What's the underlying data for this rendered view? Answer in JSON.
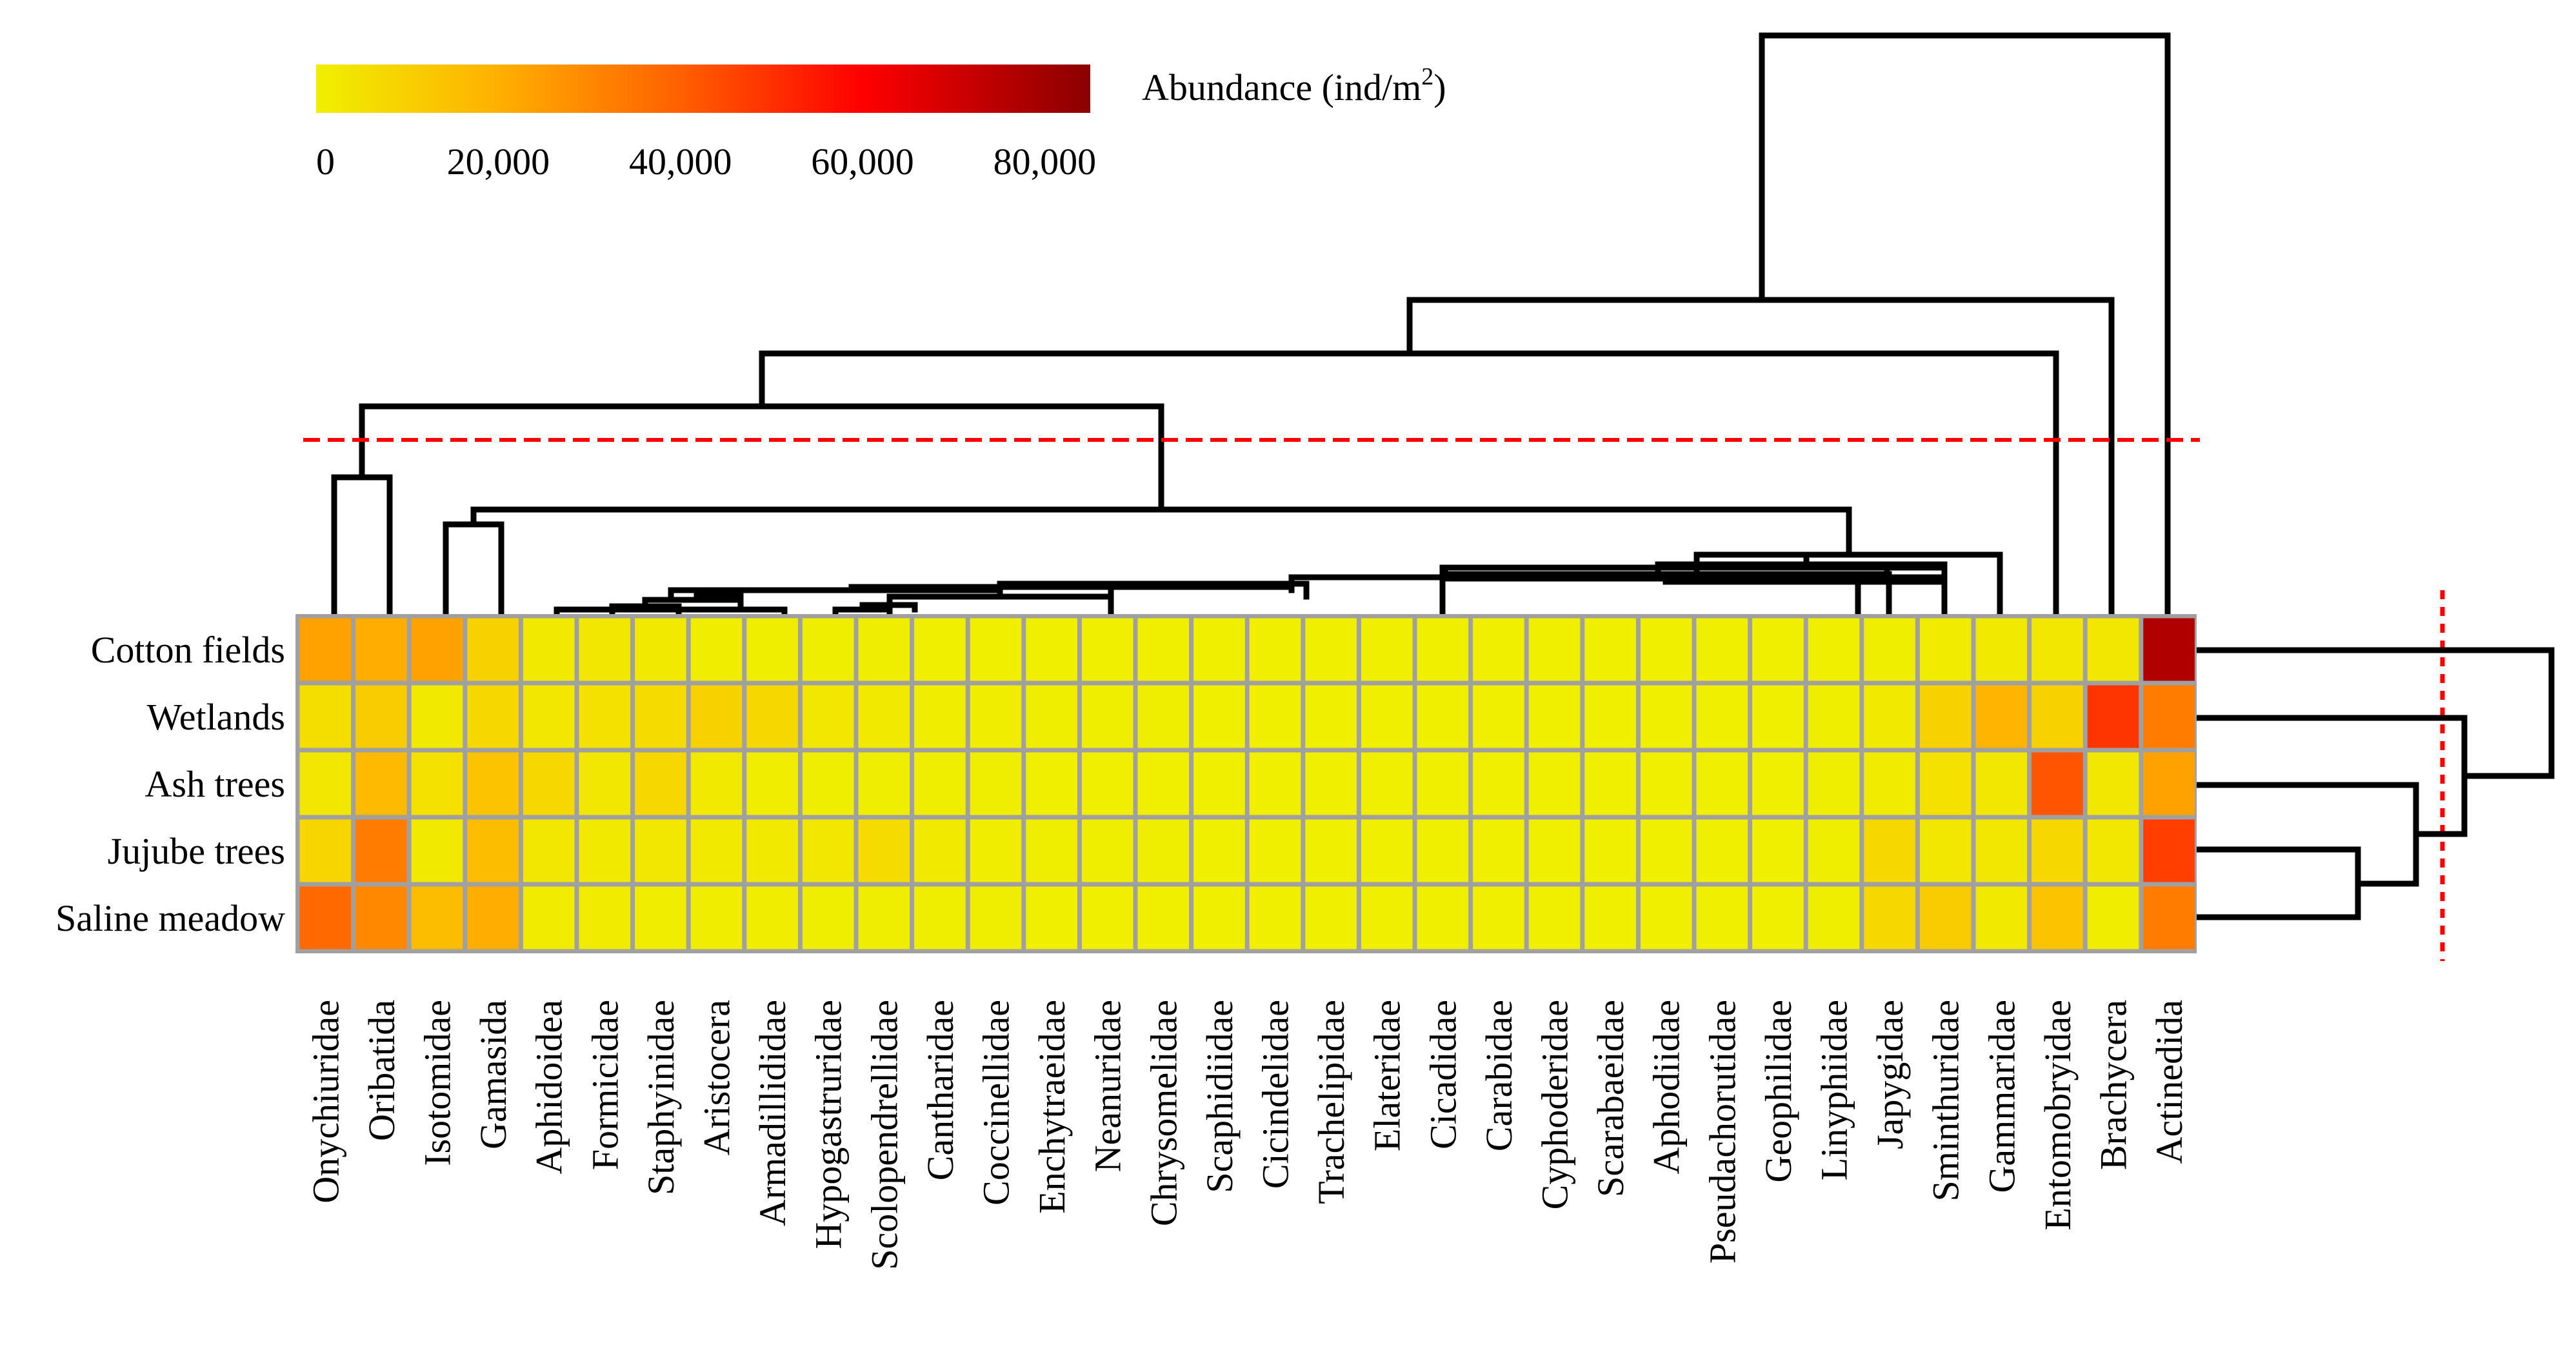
{
  "chart_data": {
    "type": "heatmap",
    "title": "",
    "xlabel": "",
    "ylabel": "",
    "rows": [
      "Cotton fields",
      "Wetlands",
      "Ash trees",
      "Jujube trees",
      "Saline meadow"
    ],
    "columns": [
      "Onychiuridae",
      "Oribatida",
      "Isotomidae",
      "Gamasida",
      "Aphidoidea",
      "Formicidae",
      "Staphyinidae",
      "Aristocera",
      "Armadillididae",
      "Hypogastruridae",
      "Scolopendrellidae",
      "Cantharidae",
      "Coccinellidae",
      "Enchytraeidae",
      "Neanuridae",
      "Chrysomelidae",
      "Scaphidiidae",
      "Cicindelidae",
      "Trachelipidae",
      "Elateridae",
      "Cicadidae",
      "Carabidae",
      "Cyphoderidae",
      "Scarabaeidae",
      "Aphodiidae",
      "Pseudachorutidae",
      "Geophilidae",
      "Linyphiidae",
      "Japygidae",
      "Sminthuridae",
      "Gammaridae",
      "Entomobryidae",
      "Brachycera",
      "Actinedida"
    ],
    "values": [
      [
        25000,
        22000,
        25000,
        10000,
        2000,
        3000,
        2000,
        1000,
        500,
        500,
        500,
        200,
        300,
        300,
        200,
        200,
        200,
        200,
        200,
        200,
        200,
        200,
        200,
        200,
        200,
        200,
        200,
        200,
        500,
        1500,
        2000,
        3000,
        3000,
        78000
      ],
      [
        6000,
        12000,
        2000,
        8000,
        3000,
        5000,
        7000,
        10000,
        8000,
        3000,
        2000,
        1000,
        1000,
        500,
        500,
        500,
        300,
        300,
        300,
        300,
        300,
        300,
        300,
        300,
        300,
        300,
        300,
        500,
        2000,
        10000,
        20000,
        10000,
        52000,
        35000
      ],
      [
        3000,
        18000,
        5000,
        15000,
        8000,
        3000,
        8000,
        2000,
        1000,
        500,
        500,
        500,
        500,
        300,
        300,
        300,
        300,
        300,
        300,
        300,
        300,
        300,
        300,
        300,
        300,
        300,
        300,
        500,
        1500,
        5000,
        3000,
        45000,
        3000,
        25000
      ],
      [
        9000,
        35000,
        2000,
        17000,
        3000,
        2000,
        3000,
        2000,
        2000,
        3000,
        7000,
        2000,
        1000,
        500,
        500,
        500,
        300,
        300,
        300,
        300,
        300,
        300,
        300,
        300,
        300,
        300,
        300,
        500,
        8000,
        3000,
        3000,
        8000,
        3000,
        50000
      ],
      [
        40000,
        32000,
        17000,
        22000,
        1500,
        1500,
        1000,
        1000,
        1000,
        500,
        500,
        500,
        500,
        300,
        300,
        300,
        300,
        300,
        300,
        300,
        300,
        300,
        300,
        300,
        300,
        300,
        300,
        500,
        8000,
        12000,
        2000,
        15000,
        1000,
        35000
      ]
    ],
    "legend": {
      "label": "Abundance (ind/m",
      "label_sup": "2",
      "label_end": ")",
      "min": 0,
      "max": 85000,
      "ticks": [
        0,
        20000,
        40000,
        60000,
        80000
      ],
      "tick_labels": [
        "0",
        "20,000",
        "40,000",
        "60,000",
        "80,000"
      ],
      "placement": "top-left",
      "colors": [
        "#f0f000",
        "#ffb000",
        "#ff6000",
        "#ff0000",
        "#8b0000"
      ]
    },
    "grid": false,
    "cell_border_color": "#a0a0a0",
    "dendrogram_color": "#000000",
    "cut_line_color": "#ff0000"
  }
}
